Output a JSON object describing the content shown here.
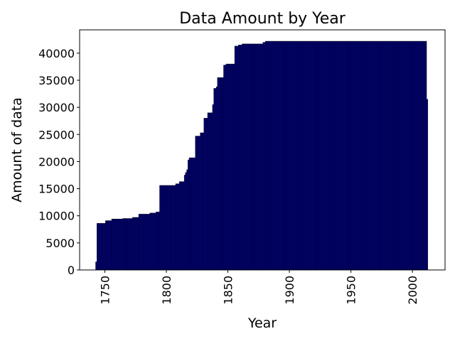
{
  "chart_data": {
    "type": "bar",
    "title": "Data Amount by Year",
    "xlabel": "Year",
    "ylabel": "Amount of data",
    "x": [
      1743,
      1744,
      1745,
      1746,
      1747,
      1748,
      1749,
      1750,
      1751,
      1752,
      1753,
      1754,
      1755,
      1756,
      1757,
      1758,
      1759,
      1760,
      1761,
      1762,
      1763,
      1764,
      1765,
      1766,
      1767,
      1768,
      1769,
      1770,
      1771,
      1772,
      1773,
      1774,
      1775,
      1776,
      1777,
      1778,
      1779,
      1780,
      1781,
      1782,
      1783,
      1784,
      1785,
      1786,
      1787,
      1788,
      1789,
      1790,
      1791,
      1792,
      1793,
      1794,
      1795,
      1796,
      1797,
      1798,
      1799,
      1800,
      1801,
      1802,
      1803,
      1804,
      1805,
      1806,
      1807,
      1808,
      1809,
      1810,
      1811,
      1812,
      1813,
      1814,
      1815,
      1816,
      1817,
      1818,
      1819,
      1820,
      1821,
      1822,
      1823,
      1824,
      1825,
      1826,
      1827,
      1828,
      1829,
      1830,
      1831,
      1832,
      1833,
      1834,
      1835,
      1836,
      1837,
      1838,
      1839,
      1840,
      1841,
      1842,
      1843,
      1844,
      1845,
      1846,
      1847,
      1848,
      1849,
      1850,
      1851,
      1852,
      1853,
      1854,
      1855,
      1856,
      1857,
      1858,
      1859,
      1860,
      1861,
      1862,
      1863,
      1864,
      1865,
      1866,
      1867,
      1868,
      1869,
      1870,
      1871,
      1872,
      1873,
      1874,
      1875,
      1876,
      1877,
      1878,
      1879,
      1880,
      1881,
      1882,
      1883,
      1884,
      1885,
      1886,
      1887,
      1888,
      1889,
      1890,
      1891,
      1892,
      1893,
      1894,
      1895,
      1896,
      1897,
      1898,
      1899,
      1900,
      1901,
      1902,
      1903,
      1904,
      1905,
      1906,
      1907,
      1908,
      1909,
      1910,
      1911,
      1912,
      1913,
      1914,
      1915,
      1916,
      1917,
      1918,
      1919,
      1920,
      1921,
      1922,
      1923,
      1924,
      1925,
      1926,
      1927,
      1928,
      1929,
      1930,
      1931,
      1932,
      1933,
      1934,
      1935,
      1936,
      1937,
      1938,
      1939,
      1940,
      1941,
      1942,
      1943,
      1944,
      1945,
      1946,
      1947,
      1948,
      1949,
      1950,
      1951,
      1952,
      1953,
      1954,
      1955,
      1956,
      1957,
      1958,
      1959,
      1960,
      1961,
      1962,
      1963,
      1964,
      1965,
      1966,
      1967,
      1968,
      1969,
      1970,
      1971,
      1972,
      1973,
      1974,
      1975,
      1976,
      1977,
      1978,
      1979,
      1980,
      1981,
      1982,
      1983,
      1984,
      1985,
      1986,
      1987,
      1988,
      1989,
      1990,
      1991,
      1992,
      1993,
      1994,
      1995,
      1996,
      1997,
      1998,
      1999,
      2000,
      2001,
      2002,
      2003,
      2004,
      2005,
      2006,
      2007,
      2008,
      2009,
      2010,
      2011,
      2012
    ],
    "values": [
      1500,
      8600,
      8600,
      8600,
      8600,
      8600,
      8600,
      8600,
      9100,
      9100,
      9100,
      9100,
      9100,
      9400,
      9400,
      9400,
      9400,
      9400,
      9400,
      9400,
      9400,
      9400,
      9500,
      9500,
      9500,
      9500,
      9500,
      9500,
      9500,
      9500,
      9700,
      9700,
      9700,
      9700,
      9700,
      10300,
      10300,
      10300,
      10300,
      10300,
      10300,
      10300,
      10300,
      10300,
      10500,
      10500,
      10500,
      10500,
      10500,
      10700,
      10700,
      10700,
      15600,
      15600,
      15600,
      15600,
      15600,
      15600,
      15600,
      15600,
      15600,
      15600,
      15600,
      15600,
      15600,
      15900,
      15900,
      15900,
      16300,
      16300,
      16300,
      16300,
      17500,
      18000,
      18500,
      20300,
      20700,
      20700,
      20700,
      20700,
      20700,
      24700,
      24700,
      24700,
      24700,
      25300,
      25300,
      25300,
      28000,
      28000,
      28000,
      29000,
      29000,
      29000,
      29000,
      30500,
      33500,
      33500,
      33800,
      35500,
      35500,
      35500,
      35500,
      35500,
      37800,
      37800,
      38000,
      38000,
      38000,
      38000,
      38000,
      38000,
      38000,
      41300,
      41300,
      41300,
      41500,
      41500,
      41500,
      41700,
      41700,
      41700,
      41700,
      41700,
      41700,
      41700,
      41700,
      41700,
      41700,
      41700,
      41700,
      41700,
      41700,
      41700,
      41700,
      41700,
      42000,
      42000,
      42200,
      42200,
      42200,
      42200,
      42200,
      42200,
      42200,
      42200,
      42200,
      42200,
      42200,
      42200,
      42200,
      42200,
      42200,
      42200,
      42200,
      42200,
      42200,
      42200,
      42200,
      42200,
      42200,
      42200,
      42200,
      42200,
      42200,
      42200,
      42200,
      42200,
      42200,
      42200,
      42200,
      42200,
      42200,
      42200,
      42200,
      42200,
      42200,
      42200,
      42200,
      42200,
      42200,
      42200,
      42200,
      42200,
      42200,
      42200,
      42200,
      42200,
      42200,
      42200,
      42200,
      42200,
      42200,
      42200,
      42200,
      42200,
      42200,
      42200,
      42200,
      42200,
      42200,
      42200,
      42200,
      42200,
      42200,
      42200,
      42200,
      42200,
      42200,
      42200,
      42200,
      42200,
      42200,
      42200,
      42200,
      42200,
      42200,
      42200,
      42200,
      42200,
      42200,
      42200,
      42200,
      42200,
      42200,
      42200,
      42200,
      42200,
      42200,
      42200,
      42200,
      42200,
      42200,
      42200,
      42200,
      42200,
      42200,
      42200,
      42200,
      42200,
      42200,
      42200,
      42200,
      42200,
      42200,
      42200,
      42200,
      42200,
      42200,
      42200,
      42200,
      42200,
      42200,
      42200,
      42200,
      42200,
      42200,
      42200,
      42200,
      42200,
      42200,
      42200,
      42200,
      42200,
      42200,
      42200,
      42200,
      42200,
      42200,
      31500
    ],
    "color": "#000080",
    "edgecolor": "#000000",
    "xlim": [
      1729.5,
      2026.5
    ],
    "xticks": [
      1750,
      1800,
      1850,
      1900,
      1950,
      2000
    ],
    "ylim": [
      0,
      44300
    ],
    "yticks": [
      0,
      5000,
      10000,
      15000,
      20000,
      25000,
      30000,
      35000,
      40000
    ],
    "grid": false
  }
}
